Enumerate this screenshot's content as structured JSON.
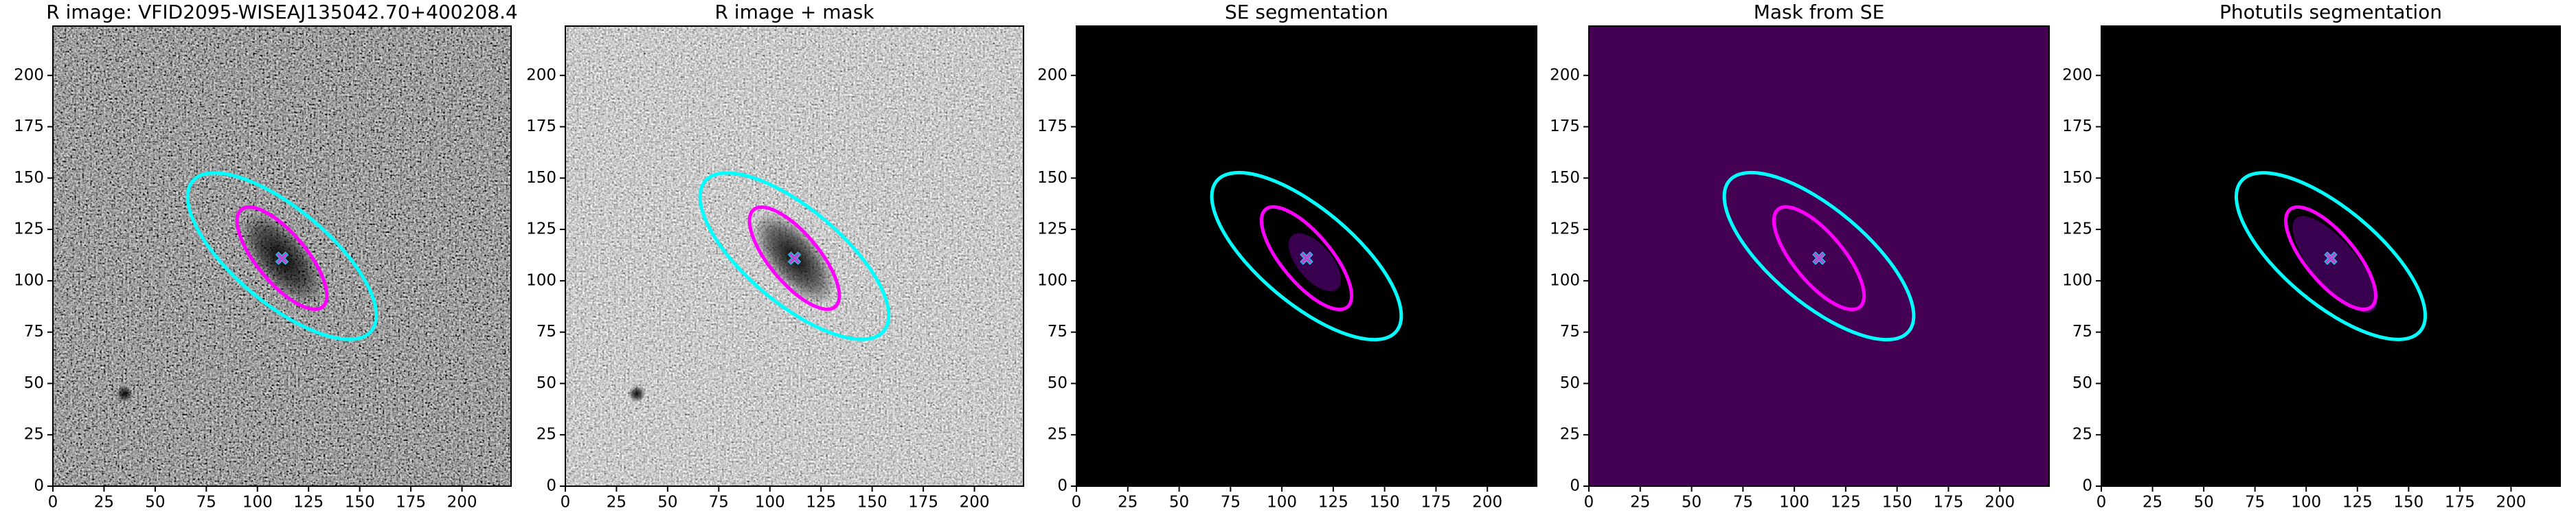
{
  "chart_data": [
    {
      "type": "image",
      "title": "R image: VFID2095-WISEAJ135042.70+400208.4",
      "xlim": [
        0,
        224
      ],
      "ylim": [
        0,
        224
      ],
      "xticks": [
        0,
        25,
        50,
        75,
        100,
        125,
        150,
        175,
        200
      ],
      "yticks": [
        0,
        25,
        50,
        75,
        100,
        125,
        150,
        175,
        200
      ],
      "ellipses": [
        {
          "color": "#00ffff",
          "x": 112,
          "y": 112,
          "a": 57,
          "b": 23,
          "theta": -40
        },
        {
          "color": "#ff00ff",
          "x": 112,
          "y": 111,
          "a": 31,
          "b": 12,
          "theta": -50
        }
      ],
      "marker": {
        "x": 112,
        "y": 111,
        "color": "#b04fd0"
      }
    },
    {
      "type": "image",
      "title": "R image + mask",
      "xlim": [
        0,
        224
      ],
      "ylim": [
        0,
        224
      ],
      "xticks": [
        0,
        25,
        50,
        75,
        100,
        125,
        150,
        175,
        200
      ],
      "yticks": [
        0,
        25,
        50,
        75,
        100,
        125,
        150,
        175,
        200
      ],
      "ellipses": [
        {
          "color": "#00ffff",
          "x": 112,
          "y": 112,
          "a": 57,
          "b": 23,
          "theta": -40
        },
        {
          "color": "#ff00ff",
          "x": 112,
          "y": 111,
          "a": 31,
          "b": 12,
          "theta": -50
        }
      ],
      "marker": {
        "x": 112,
        "y": 111,
        "color": "#b04fd0"
      }
    },
    {
      "type": "image",
      "title": "SE segmentation",
      "xlim": [
        0,
        224
      ],
      "ylim": [
        0,
        224
      ],
      "xticks": [
        0,
        25,
        50,
        75,
        100,
        125,
        150,
        175,
        200
      ],
      "yticks": [
        0,
        25,
        50,
        75,
        100,
        125,
        150,
        175,
        200
      ],
      "ellipses": [
        {
          "color": "#00ffff",
          "x": 112,
          "y": 112,
          "a": 57,
          "b": 23,
          "theta": -40
        },
        {
          "color": "#ff00ff",
          "x": 112,
          "y": 111,
          "a": 31,
          "b": 12,
          "theta": -50
        }
      ],
      "marker": {
        "x": 112,
        "y": 111,
        "color": "#b04fd0"
      }
    },
    {
      "type": "image",
      "title": "Mask from SE",
      "xlim": [
        0,
        224
      ],
      "ylim": [
        0,
        224
      ],
      "xticks": [
        0,
        25,
        50,
        75,
        100,
        125,
        150,
        175,
        200
      ],
      "yticks": [
        0,
        25,
        50,
        75,
        100,
        125,
        150,
        175,
        200
      ],
      "ellipses": [
        {
          "color": "#00ffff",
          "x": 112,
          "y": 112,
          "a": 57,
          "b": 23,
          "theta": -40
        },
        {
          "color": "#ff00ff",
          "x": 112,
          "y": 111,
          "a": 31,
          "b": 12,
          "theta": -50
        }
      ],
      "marker": {
        "x": 112,
        "y": 111,
        "color": "#b04fd0"
      }
    },
    {
      "type": "image",
      "title": "Photutils segmentation",
      "xlim": [
        0,
        224
      ],
      "ylim": [
        0,
        224
      ],
      "xticks": [
        0,
        25,
        50,
        75,
        100,
        125,
        150,
        175,
        200
      ],
      "yticks": [
        0,
        25,
        50,
        75,
        100,
        125,
        150,
        175,
        200
      ],
      "ellipses": [
        {
          "color": "#00ffff",
          "x": 112,
          "y": 112,
          "a": 57,
          "b": 23,
          "theta": -40
        },
        {
          "color": "#ff00ff",
          "x": 112,
          "y": 111,
          "a": 31,
          "b": 12,
          "theta": -50
        }
      ],
      "marker": {
        "x": 112,
        "y": 111,
        "color": "#b04fd0"
      }
    }
  ]
}
